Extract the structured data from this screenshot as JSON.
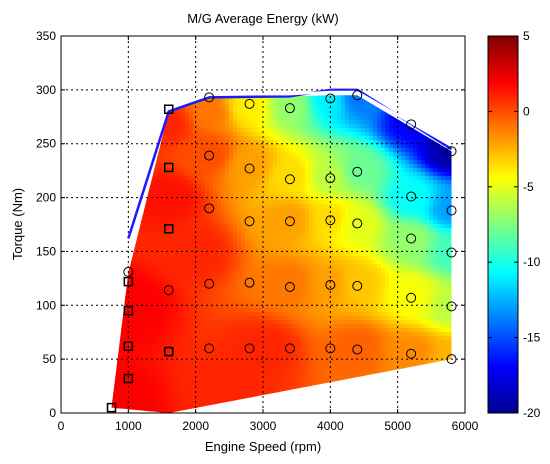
{
  "chart_data": {
    "type": "heatmap",
    "title": "M/G Average Energy (kW)",
    "xlabel": "Engine Speed (rpm)",
    "ylabel": "Torque (Nm)",
    "xlim": [
      0,
      6000
    ],
    "ylim": [
      0,
      350
    ],
    "xticks": [
      0,
      1000,
      2000,
      3000,
      4000,
      5000,
      6000
    ],
    "yticks": [
      0,
      50,
      100,
      150,
      200,
      250,
      300,
      350
    ],
    "grid": true,
    "colorbar": {
      "range": [
        -20,
        5
      ],
      "ticks": [
        -20,
        -15,
        -10,
        -5,
        0,
        5
      ],
      "colormap": "jet"
    },
    "region_polygon": [
      [
        750,
        5
      ],
      [
        1000,
        130
      ],
      [
        1600,
        280
      ],
      [
        2200,
        292
      ],
      [
        4000,
        295
      ],
      [
        4400,
        295
      ],
      [
        5800,
        243
      ],
      [
        5800,
        50
      ],
      [
        1600,
        0
      ]
    ],
    "color_samples": [
      {
        "x": 1000,
        "y": 100,
        "v": 2.0
      },
      {
        "x": 2000,
        "y": 150,
        "v": 1.0
      },
      {
        "x": 3000,
        "y": 60,
        "v": 1.0
      },
      {
        "x": 2200,
        "y": 280,
        "v": -1.0
      },
      {
        "x": 2800,
        "y": 285,
        "v": -4.0
      },
      {
        "x": 3400,
        "y": 285,
        "v": -7.0
      },
      {
        "x": 4000,
        "y": 290,
        "v": -11.0
      },
      {
        "x": 4400,
        "y": 292,
        "v": -14.0
      },
      {
        "x": 5200,
        "y": 270,
        "v": -17.0
      },
      {
        "x": 5800,
        "y": 243,
        "v": -19.0
      },
      {
        "x": 2800,
        "y": 230,
        "v": -2.0
      },
      {
        "x": 3400,
        "y": 220,
        "v": -3.5
      },
      {
        "x": 4000,
        "y": 220,
        "v": -6.0
      },
      {
        "x": 4400,
        "y": 225,
        "v": -8.0
      },
      {
        "x": 5200,
        "y": 200,
        "v": -10.5
      },
      {
        "x": 5800,
        "y": 190,
        "v": -13.0
      },
      {
        "x": 3400,
        "y": 180,
        "v": -2.0
      },
      {
        "x": 4000,
        "y": 180,
        "v": -3.5
      },
      {
        "x": 4400,
        "y": 175,
        "v": -5.0
      },
      {
        "x": 5200,
        "y": 160,
        "v": -7.0
      },
      {
        "x": 5800,
        "y": 150,
        "v": -9.0
      },
      {
        "x": 3400,
        "y": 120,
        "v": -1.0
      },
      {
        "x": 4000,
        "y": 120,
        "v": -2.0
      },
      {
        "x": 4400,
        "y": 120,
        "v": -3.0
      },
      {
        "x": 5200,
        "y": 110,
        "v": -4.5
      },
      {
        "x": 5800,
        "y": 100,
        "v": -6.0
      },
      {
        "x": 4400,
        "y": 60,
        "v": -0.5
      },
      {
        "x": 5200,
        "y": 55,
        "v": -1.5
      },
      {
        "x": 5800,
        "y": 50,
        "v": -2.5
      },
      {
        "x": 1600,
        "y": 200,
        "v": 1.5
      },
      {
        "x": 2200,
        "y": 240,
        "v": 0.0
      },
      {
        "x": 1600,
        "y": 270,
        "v": 1.0
      },
      {
        "x": 800,
        "y": 10,
        "v": 2.0
      },
      {
        "x": 2500,
        "y": 20,
        "v": 1.0
      }
    ],
    "squares": [
      [
        750,
        5
      ],
      [
        1000,
        32
      ],
      [
        1000,
        62
      ],
      [
        1000,
        95
      ],
      [
        1000,
        122
      ],
      [
        1600,
        57
      ],
      [
        1600,
        171
      ],
      [
        1600,
        228
      ],
      [
        1600,
        282
      ]
    ],
    "circles": [
      [
        1000,
        131
      ],
      [
        1600,
        114
      ],
      [
        1600,
        57
      ],
      [
        2200,
        293
      ],
      [
        2200,
        239
      ],
      [
        2200,
        190
      ],
      [
        2200,
        120
      ],
      [
        2200,
        60
      ],
      [
        2800,
        287
      ],
      [
        2800,
        227
      ],
      [
        2800,
        178
      ],
      [
        2800,
        121
      ],
      [
        2800,
        60
      ],
      [
        3400,
        283
      ],
      [
        3400,
        217
      ],
      [
        3400,
        178
      ],
      [
        3400,
        117
      ],
      [
        3400,
        60
      ],
      [
        4000,
        292
      ],
      [
        4000,
        218
      ],
      [
        4000,
        179
      ],
      [
        4000,
        119
      ],
      [
        4000,
        60
      ],
      [
        4400,
        295
      ],
      [
        4400,
        224
      ],
      [
        4400,
        176
      ],
      [
        4400,
        118
      ],
      [
        4400,
        59
      ],
      [
        5200,
        268
      ],
      [
        5200,
        201
      ],
      [
        5200,
        162
      ],
      [
        5200,
        107
      ],
      [
        5200,
        55
      ],
      [
        5800,
        243
      ],
      [
        5800,
        188
      ],
      [
        5800,
        149
      ],
      [
        5800,
        99
      ],
      [
        5800,
        50
      ]
    ],
    "boundary_lines": [
      {
        "color": "#1a1aff",
        "points": [
          [
            1000,
            162
          ],
          [
            1600,
            280
          ],
          [
            2200,
            293
          ],
          [
            3400,
            294
          ],
          [
            4000,
            300
          ],
          [
            4400,
            300
          ],
          [
            5800,
            245
          ]
        ]
      },
      {
        "color": "#ffffff",
        "points": [
          [
            1600,
            283
          ],
          [
            2200,
            296
          ],
          [
            3400,
            296
          ],
          [
            4000,
            298
          ],
          [
            4400,
            298
          ],
          [
            5800,
            248
          ]
        ]
      }
    ]
  }
}
